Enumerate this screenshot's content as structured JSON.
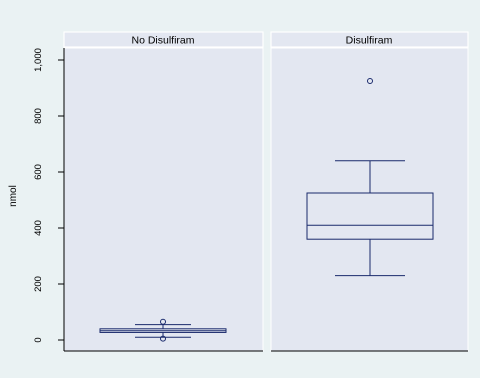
{
  "chart_data": {
    "type": "boxplot",
    "ylabel": "nmol",
    "ylim": [
      -30,
      1060
    ],
    "yticks": [
      0,
      200,
      400,
      600,
      800,
      1000
    ],
    "ytick_labels": [
      "0",
      "200",
      "400",
      "600",
      "800",
      "1,000"
    ],
    "grid": false,
    "legend": "none",
    "panels": [
      {
        "name": "No Disulfiram",
        "box": {
          "whisker_low": 10,
          "q1": 27,
          "median": 33,
          "q3": 40,
          "whisker_high": 55
        },
        "outliers": [
          65,
          5
        ]
      },
      {
        "name": "Disulfiram",
        "box": {
          "whisker_low": 230,
          "q1": 360,
          "median": 410,
          "q3": 525,
          "whisker_high": 640
        },
        "outliers": [
          925
        ]
      }
    ]
  },
  "colors": {
    "background": "#eaf2f3",
    "plot_area": "#e3e7f1",
    "strip": "#e3e7f1",
    "strip_border": "#ffffff",
    "box_stroke": "#1a2a6c",
    "axis": "#000000"
  }
}
